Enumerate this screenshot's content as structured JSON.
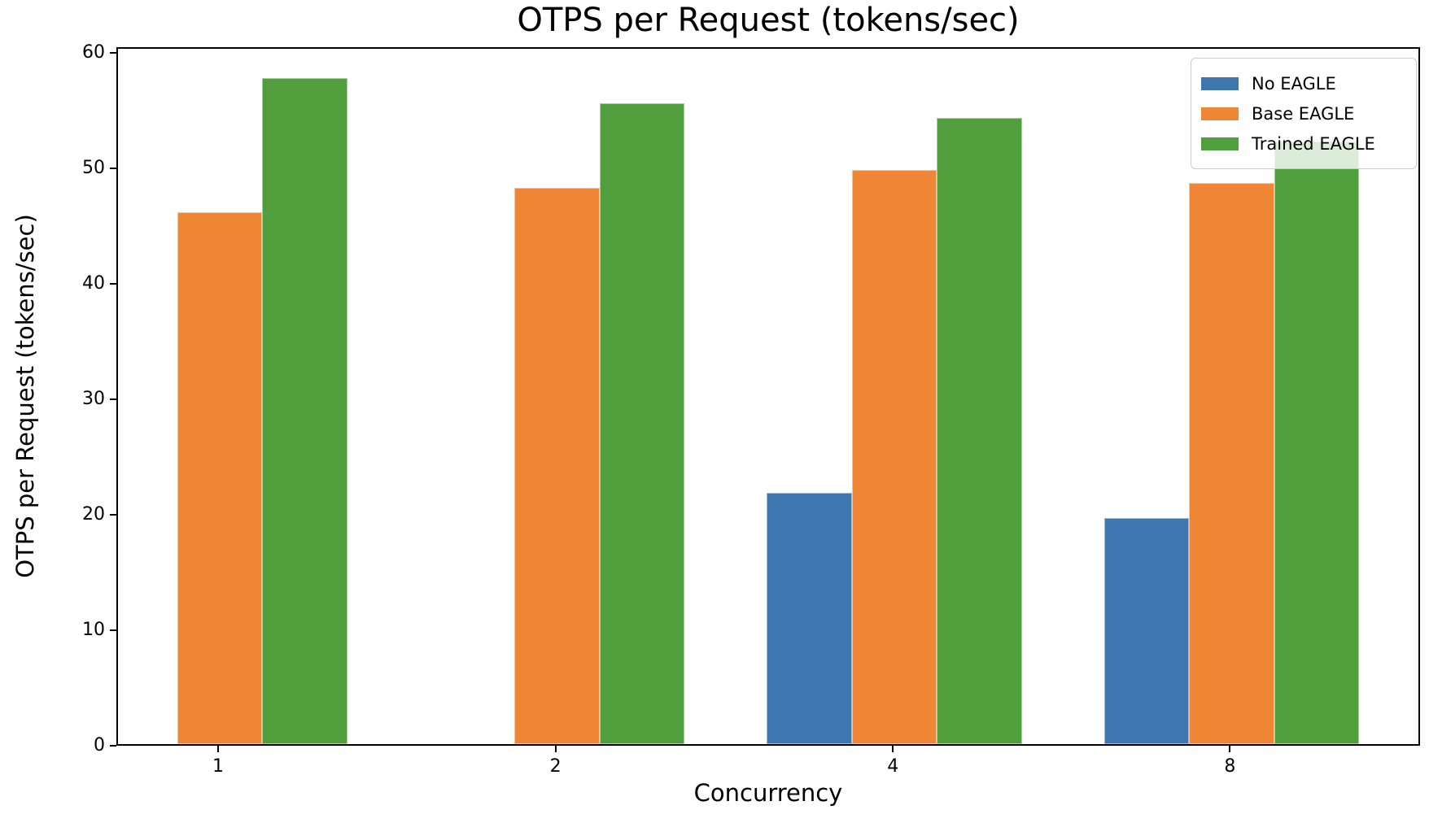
{
  "chart_data": {
    "type": "bar",
    "title": "OTPS per Request (tokens/sec)",
    "xlabel": "Concurrency",
    "ylabel": "OTPS per Request (tokens/sec)",
    "categories": [
      "1",
      "2",
      "4",
      "8"
    ],
    "series": [
      {
        "name": "No EAGLE",
        "color": "#3E76AF",
        "values": [
          0,
          0,
          21.8,
          19.6
        ]
      },
      {
        "name": "Base EAGLE",
        "color": "#EE8635",
        "values": [
          46.1,
          48.2,
          49.7,
          48.6
        ]
      },
      {
        "name": "Trained EAGLE",
        "color": "#519E3D",
        "values": [
          57.7,
          55.5,
          54.2,
          52.2
        ]
      }
    ],
    "ylim": [
      0,
      60
    ],
    "yticks": [
      0,
      10,
      20,
      30,
      40,
      50,
      60
    ],
    "legend": {
      "position": "upper right",
      "labels": [
        "No EAGLE",
        "Base EAGLE",
        "Trained EAGLE"
      ]
    },
    "grid": false,
    "axis_color": "#000000",
    "background_color": "#ffffff"
  }
}
